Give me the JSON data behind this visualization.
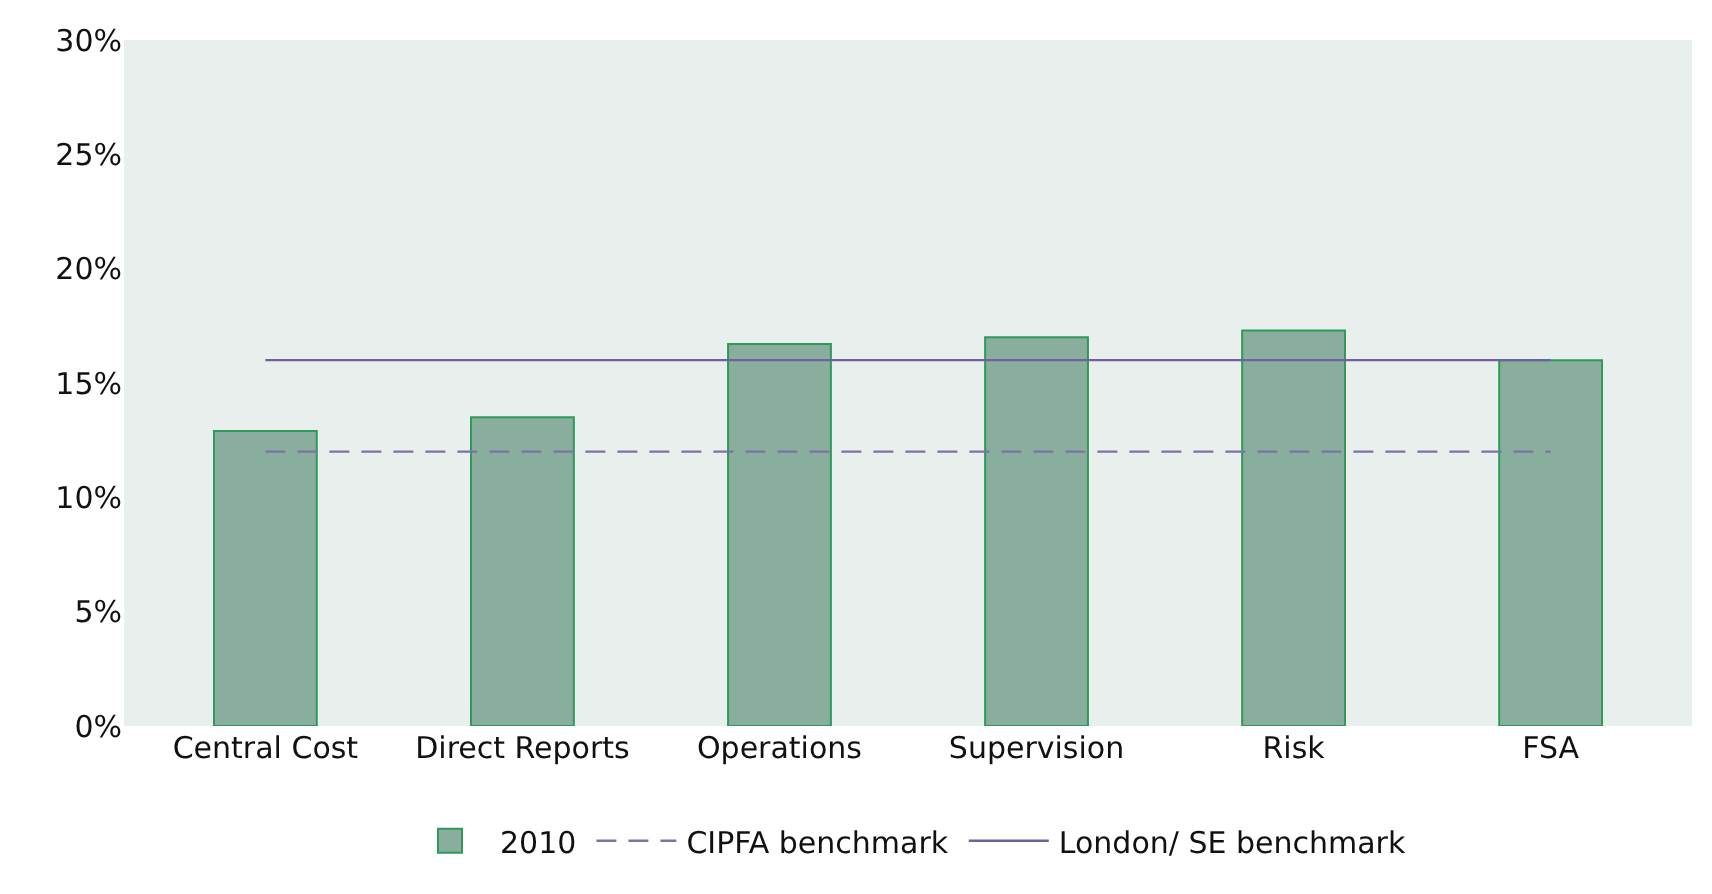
{
  "chart_data": {
    "type": "bar",
    "categories": [
      "Central Cost",
      "Direct Reports",
      "Operations",
      "Supervision",
      "Risk",
      "FSA"
    ],
    "series": [
      {
        "name": "2010",
        "color": "#8aae9e",
        "values": [
          12.9,
          13.5,
          16.7,
          17.0,
          17.3,
          16.0
        ]
      },
      {
        "name": "CIPFA benchmark",
        "type": "line",
        "color": "#8070a8",
        "line_style": "dashed",
        "values": [
          12,
          12,
          12,
          12,
          12,
          12
        ]
      },
      {
        "name": "London/ SE benchmark",
        "type": "line",
        "color": "#7060a0",
        "line_style": "solid",
        "values": [
          16,
          16,
          16,
          16,
          16,
          16
        ]
      }
    ],
    "ylim": [
      0,
      30
    ],
    "yticks": [
      {
        "value": 0,
        "label": "0%"
      },
      {
        "value": 5,
        "label": "5%"
      },
      {
        "value": 10,
        "label": "10%"
      },
      {
        "value": 15,
        "label": "15%"
      },
      {
        "value": 20,
        "label": "20%"
      },
      {
        "value": 25,
        "label": "25%"
      },
      {
        "value": 30,
        "label": "30%"
      }
    ],
    "grid": false,
    "legend": "bottom",
    "marker": "none"
  }
}
